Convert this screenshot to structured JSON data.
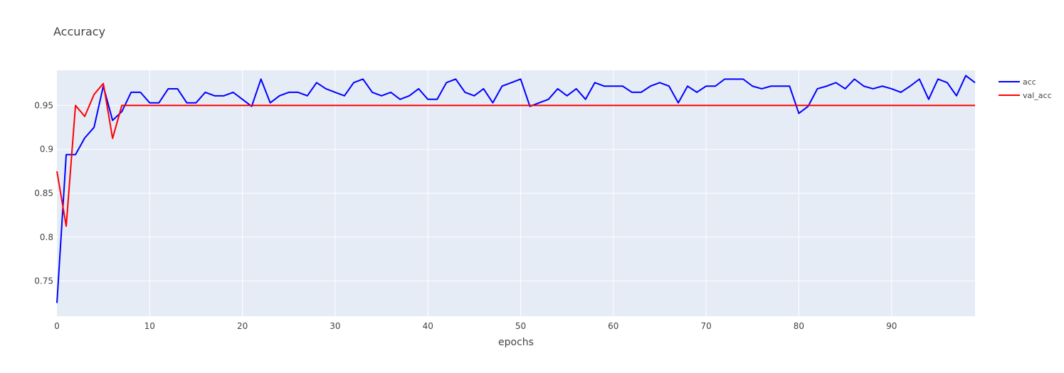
{
  "chart_data": {
    "type": "line",
    "title": "Accuracy",
    "xlabel": "epochs",
    "ylabel": "",
    "xlim": [
      0,
      99
    ],
    "ylim": [
      0.71,
      0.99
    ],
    "x_ticks": [
      0,
      10,
      20,
      30,
      40,
      50,
      60,
      70,
      80,
      90
    ],
    "y_ticks": [
      0.75,
      0.8,
      0.85,
      0.9,
      0.95
    ],
    "y_tick_labels": [
      "0.75",
      "0.8",
      "0.85",
      "0.9",
      "0.95"
    ],
    "grid": true,
    "legend_position": "top-right",
    "series": [
      {
        "name": "acc",
        "color": "#0000ff",
        "values": [
          0.725,
          0.894,
          0.894,
          0.913,
          0.925,
          0.972,
          0.933,
          0.943,
          0.965,
          0.965,
          0.953,
          0.953,
          0.969,
          0.969,
          0.953,
          0.953,
          0.965,
          0.961,
          0.961,
          0.965,
          0.957,
          0.949,
          0.98,
          0.953,
          0.961,
          0.965,
          0.965,
          0.961,
          0.976,
          0.969,
          0.965,
          0.961,
          0.976,
          0.98,
          0.965,
          0.961,
          0.965,
          0.957,
          0.961,
          0.969,
          0.957,
          0.957,
          0.976,
          0.98,
          0.965,
          0.961,
          0.969,
          0.953,
          0.972,
          0.976,
          0.98,
          0.949,
          0.953,
          0.957,
          0.969,
          0.961,
          0.969,
          0.957,
          0.976,
          0.972,
          0.972,
          0.972,
          0.965,
          0.965,
          0.972,
          0.976,
          0.972,
          0.953,
          0.972,
          0.965,
          0.972,
          0.972,
          0.98,
          0.98,
          0.98,
          0.972,
          0.969,
          0.972,
          0.972,
          0.972,
          0.941,
          0.949,
          0.969,
          0.972,
          0.976,
          0.969,
          0.98,
          0.972,
          0.969,
          0.972,
          0.969,
          0.965,
          0.972,
          0.98,
          0.957,
          0.98,
          0.976,
          0.961,
          0.984,
          0.976
        ]
      },
      {
        "name": "val_acc",
        "color": "#ff0000",
        "values": [
          0.875,
          0.8125,
          0.95,
          0.9375,
          0.9625,
          0.975,
          0.9125,
          0.95,
          0.95,
          0.95,
          0.95,
          0.95,
          0.95,
          0.95,
          0.95,
          0.95,
          0.95,
          0.95,
          0.95,
          0.95,
          0.95,
          0.95,
          0.95,
          0.95,
          0.95,
          0.95,
          0.95,
          0.95,
          0.95,
          0.95,
          0.95,
          0.95,
          0.95,
          0.95,
          0.95,
          0.95,
          0.95,
          0.95,
          0.95,
          0.95,
          0.95,
          0.95,
          0.95,
          0.95,
          0.95,
          0.95,
          0.95,
          0.95,
          0.95,
          0.95,
          0.95,
          0.95,
          0.95,
          0.95,
          0.95,
          0.95,
          0.95,
          0.95,
          0.95,
          0.95,
          0.95,
          0.95,
          0.95,
          0.95,
          0.95,
          0.95,
          0.95,
          0.95,
          0.95,
          0.95,
          0.95,
          0.95,
          0.95,
          0.95,
          0.95,
          0.95,
          0.95,
          0.95,
          0.95,
          0.95,
          0.95,
          0.95,
          0.95,
          0.95,
          0.95,
          0.95,
          0.95,
          0.95,
          0.95,
          0.95,
          0.95,
          0.95,
          0.95,
          0.95,
          0.95,
          0.95,
          0.95,
          0.95,
          0.95,
          0.95
        ]
      }
    ]
  }
}
